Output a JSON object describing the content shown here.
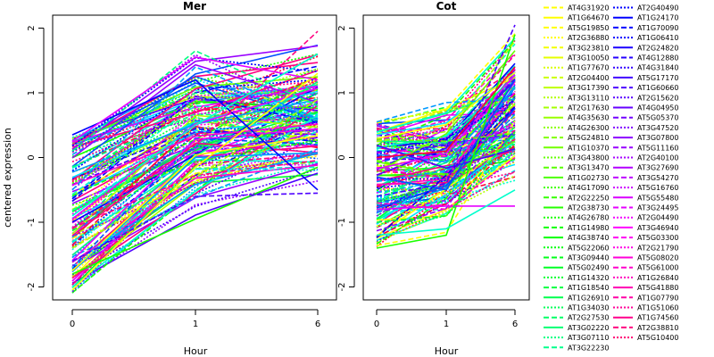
{
  "chart_data": {
    "type": "line",
    "ylabel": "centered expression",
    "xlabel": "Hour",
    "y_ticks": [
      "-2",
      "-1",
      "0",
      "1",
      "2"
    ],
    "ylim": [
      -2.2,
      2.2
    ],
    "grid": false,
    "legend_position": "right",
    "panels": [
      {
        "title": "Mer",
        "x_ticks": [
          "0",
          "1",
          "6"
        ],
        "categories": [
          "0",
          "1",
          "6"
        ],
        "profile_range": {
          "hour0": [
            -2.1,
            0.35
          ],
          "hour1": [
            -1.0,
            1.7
          ],
          "hour6": [
            -0.6,
            2.0
          ]
        },
        "sample_series": [
          {
            "values": [
              -2.05,
              -0.15,
              1.3
            ]
          },
          {
            "values": [
              0.1,
              1.65,
              0.8
            ]
          },
          {
            "values": [
              0.35,
              1.2,
              -0.5
            ]
          },
          {
            "values": [
              -1.1,
              0.2,
              1.95
            ]
          },
          {
            "values": [
              -1.8,
              -0.95,
              -0.15
            ]
          },
          {
            "values": [
              -0.5,
              1.4,
              0.6
            ]
          },
          {
            "values": [
              0.25,
              1.55,
              1.2
            ]
          },
          {
            "values": [
              -1.4,
              -0.3,
              0.9
            ]
          },
          {
            "values": [
              -0.9,
              0.5,
              1.6
            ]
          },
          {
            "values": [
              -1.6,
              -0.6,
              -0.55
            ]
          }
        ]
      },
      {
        "title": "Cot",
        "x_ticks": [
          "0",
          "1",
          "6"
        ],
        "categories": [
          "0",
          "1",
          "6"
        ],
        "profile_range": {
          "hour0": [
            -1.4,
            0.55
          ],
          "hour1": [
            -1.2,
            0.9
          ],
          "hour6": [
            -0.75,
            2.05
          ]
        },
        "sample_series": [
          {
            "values": [
              -1.4,
              -1.2,
              1.9
            ]
          },
          {
            "values": [
              0.55,
              0.85,
              0.9
            ]
          },
          {
            "values": [
              -0.8,
              -0.75,
              -0.75
            ]
          },
          {
            "values": [
              0.25,
              0.4,
              1.8
            ]
          },
          {
            "values": [
              -1.2,
              -1.1,
              -0.5
            ]
          },
          {
            "values": [
              -0.6,
              -0.4,
              2.05
            ]
          },
          {
            "values": [
              0.0,
              0.1,
              1.4
            ]
          },
          {
            "values": [
              -1.0,
              -0.9,
              0.4
            ]
          },
          {
            "values": [
              -0.3,
              -0.5,
              1.2
            ]
          },
          {
            "values": [
              -0.7,
              -0.8,
              0.0
            ]
          }
        ]
      }
    ],
    "series_colors": [
      "#ffff00",
      "#b3ff00",
      "#66ff00",
      "#1aff00",
      "#00ff33",
      "#00ff80",
      "#00ffcc",
      "#00e6ff",
      "#0099ff",
      "#004dff",
      "#0000ff",
      "#4d00ff",
      "#9900ff",
      "#e600ff",
      "#ff00cc",
      "#ff0080",
      "#ff0033"
    ],
    "legend": {
      "left_column": [
        {
          "name": "AT4G31920",
          "color": "#ffff00",
          "dash": "dashed"
        },
        {
          "name": "AT1G64670",
          "color": "#ffff00",
          "dash": "solid"
        },
        {
          "name": "AT5G19850",
          "color": "#ffff00",
          "dash": "dashed"
        },
        {
          "name": "AT2G36880",
          "color": "#ffff00",
          "dash": "dotted"
        },
        {
          "name": "AT3G23810",
          "color": "#f2ff00",
          "dash": "dashed"
        },
        {
          "name": "AT3G10050",
          "color": "#e6ff00",
          "dash": "solid"
        },
        {
          "name": "AT1G77670",
          "color": "#d9ff00",
          "dash": "dotted"
        },
        {
          "name": "AT2G04400",
          "color": "#ccff00",
          "dash": "dashed"
        },
        {
          "name": "AT3G17390",
          "color": "#bfff00",
          "dash": "solid"
        },
        {
          "name": "AT3G13110",
          "color": "#b3ff00",
          "dash": "dotted"
        },
        {
          "name": "AT2G17630",
          "color": "#a6ff00",
          "dash": "dashed"
        },
        {
          "name": "AT4G35630",
          "color": "#99ff00",
          "dash": "solid"
        },
        {
          "name": "AT4G26300",
          "color": "#8cff00",
          "dash": "dotted"
        },
        {
          "name": "AT5G24810",
          "color": "#80ff00",
          "dash": "dashed"
        },
        {
          "name": "AT1G10370",
          "color": "#73ff00",
          "dash": "solid"
        },
        {
          "name": "AT3G43800",
          "color": "#66ff00",
          "dash": "dotted"
        },
        {
          "name": "AT3G13470",
          "color": "#59ff00",
          "dash": "dashed"
        },
        {
          "name": "AT1G02730",
          "color": "#4dff00",
          "dash": "solid"
        },
        {
          "name": "AT4G17090",
          "color": "#40ff00",
          "dash": "dotted"
        },
        {
          "name": "AT2G22250",
          "color": "#33ff00",
          "dash": "dashed"
        },
        {
          "name": "AT2G38730",
          "color": "#26ff00",
          "dash": "solid"
        },
        {
          "name": "AT4G26780",
          "color": "#1aff00",
          "dash": "dotted"
        },
        {
          "name": "AT1G14980",
          "color": "#0dff00",
          "dash": "dashed"
        },
        {
          "name": "AT4G38740",
          "color": "#00ff00",
          "dash": "solid"
        },
        {
          "name": "AT5G22060",
          "color": "#00ff0d",
          "dash": "dotted"
        },
        {
          "name": "AT3G09440",
          "color": "#00ff1a",
          "dash": "dashed"
        },
        {
          "name": "AT5G02490",
          "color": "#00ff26",
          "dash": "solid"
        },
        {
          "name": "AT1G14320",
          "color": "#00ff33",
          "dash": "dotted"
        },
        {
          "name": "AT1G18540",
          "color": "#00ff40",
          "dash": "dashed"
        },
        {
          "name": "AT1G26910",
          "color": "#00ff4d",
          "dash": "solid"
        },
        {
          "name": "AT1G34030",
          "color": "#00ff59",
          "dash": "dotted"
        },
        {
          "name": "AT2G27530",
          "color": "#00ff66",
          "dash": "dashed"
        },
        {
          "name": "AT3G02220",
          "color": "#00ff73",
          "dash": "solid"
        },
        {
          "name": "AT3G07110",
          "color": "#00ff80",
          "dash": "dotted"
        },
        {
          "name": "AT3G22230",
          "color": "#00ff8c",
          "dash": "dashed"
        }
      ],
      "right_column": [
        {
          "name": "AT2G40490",
          "color": "#0000ff",
          "dash": "dotted"
        },
        {
          "name": "AT1G24170",
          "color": "#0000ff",
          "dash": "solid"
        },
        {
          "name": "AT1G70090",
          "color": "#0000ff",
          "dash": "dashed"
        },
        {
          "name": "AT1G06410",
          "color": "#0d00ff",
          "dash": "dotted"
        },
        {
          "name": "AT2G24820",
          "color": "#1a00ff",
          "dash": "solid"
        },
        {
          "name": "AT4G12880",
          "color": "#2600ff",
          "dash": "dashed"
        },
        {
          "name": "AT4G31840",
          "color": "#3300ff",
          "dash": "dotted"
        },
        {
          "name": "AT5G17170",
          "color": "#4000ff",
          "dash": "solid"
        },
        {
          "name": "AT1G60660",
          "color": "#4d00ff",
          "dash": "dashed"
        },
        {
          "name": "AT2G15620",
          "color": "#5900ff",
          "dash": "dotted"
        },
        {
          "name": "AT4G04950",
          "color": "#6600ff",
          "dash": "solid"
        },
        {
          "name": "AT5G05370",
          "color": "#7300ff",
          "dash": "dashed"
        },
        {
          "name": "AT3G47520",
          "color": "#8000ff",
          "dash": "dotted"
        },
        {
          "name": "AT3G07800",
          "color": "#8c00ff",
          "dash": "solid"
        },
        {
          "name": "AT5G11160",
          "color": "#9900ff",
          "dash": "dashed"
        },
        {
          "name": "AT2G40100",
          "color": "#a600ff",
          "dash": "dotted"
        },
        {
          "name": "AT3G27690",
          "color": "#b300ff",
          "dash": "solid"
        },
        {
          "name": "AT3G54270",
          "color": "#bf00ff",
          "dash": "dashed"
        },
        {
          "name": "AT5G16760",
          "color": "#cc00ff",
          "dash": "dotted"
        },
        {
          "name": "AT5G55480",
          "color": "#d900ff",
          "dash": "solid"
        },
        {
          "name": "AT3G24495",
          "color": "#e600ff",
          "dash": "dashed"
        },
        {
          "name": "AT2G04490",
          "color": "#f200ff",
          "dash": "dotted"
        },
        {
          "name": "AT3G46940",
          "color": "#ff00ff",
          "dash": "solid"
        },
        {
          "name": "AT5G03300",
          "color": "#ff00f2",
          "dash": "dashed"
        },
        {
          "name": "AT2G21790",
          "color": "#ff00e6",
          "dash": "dotted"
        },
        {
          "name": "AT5G08020",
          "color": "#ff00d9",
          "dash": "solid"
        },
        {
          "name": "AT5G61000",
          "color": "#ff00cc",
          "dash": "dashed"
        },
        {
          "name": "AT1G26840",
          "color": "#ff00bf",
          "dash": "dotted"
        },
        {
          "name": "AT5G41880",
          "color": "#ff00b3",
          "dash": "solid"
        },
        {
          "name": "AT1G07790",
          "color": "#ff00a6",
          "dash": "dashed"
        },
        {
          "name": "AT1G51060",
          "color": "#ff0099",
          "dash": "dotted"
        },
        {
          "name": "AT1G74560",
          "color": "#ff008c",
          "dash": "solid"
        },
        {
          "name": "AT2G38810",
          "color": "#ff0080",
          "dash": "dashed"
        },
        {
          "name": "AT5G10400",
          "color": "#ff0073",
          "dash": "dotted"
        }
      ]
    }
  }
}
